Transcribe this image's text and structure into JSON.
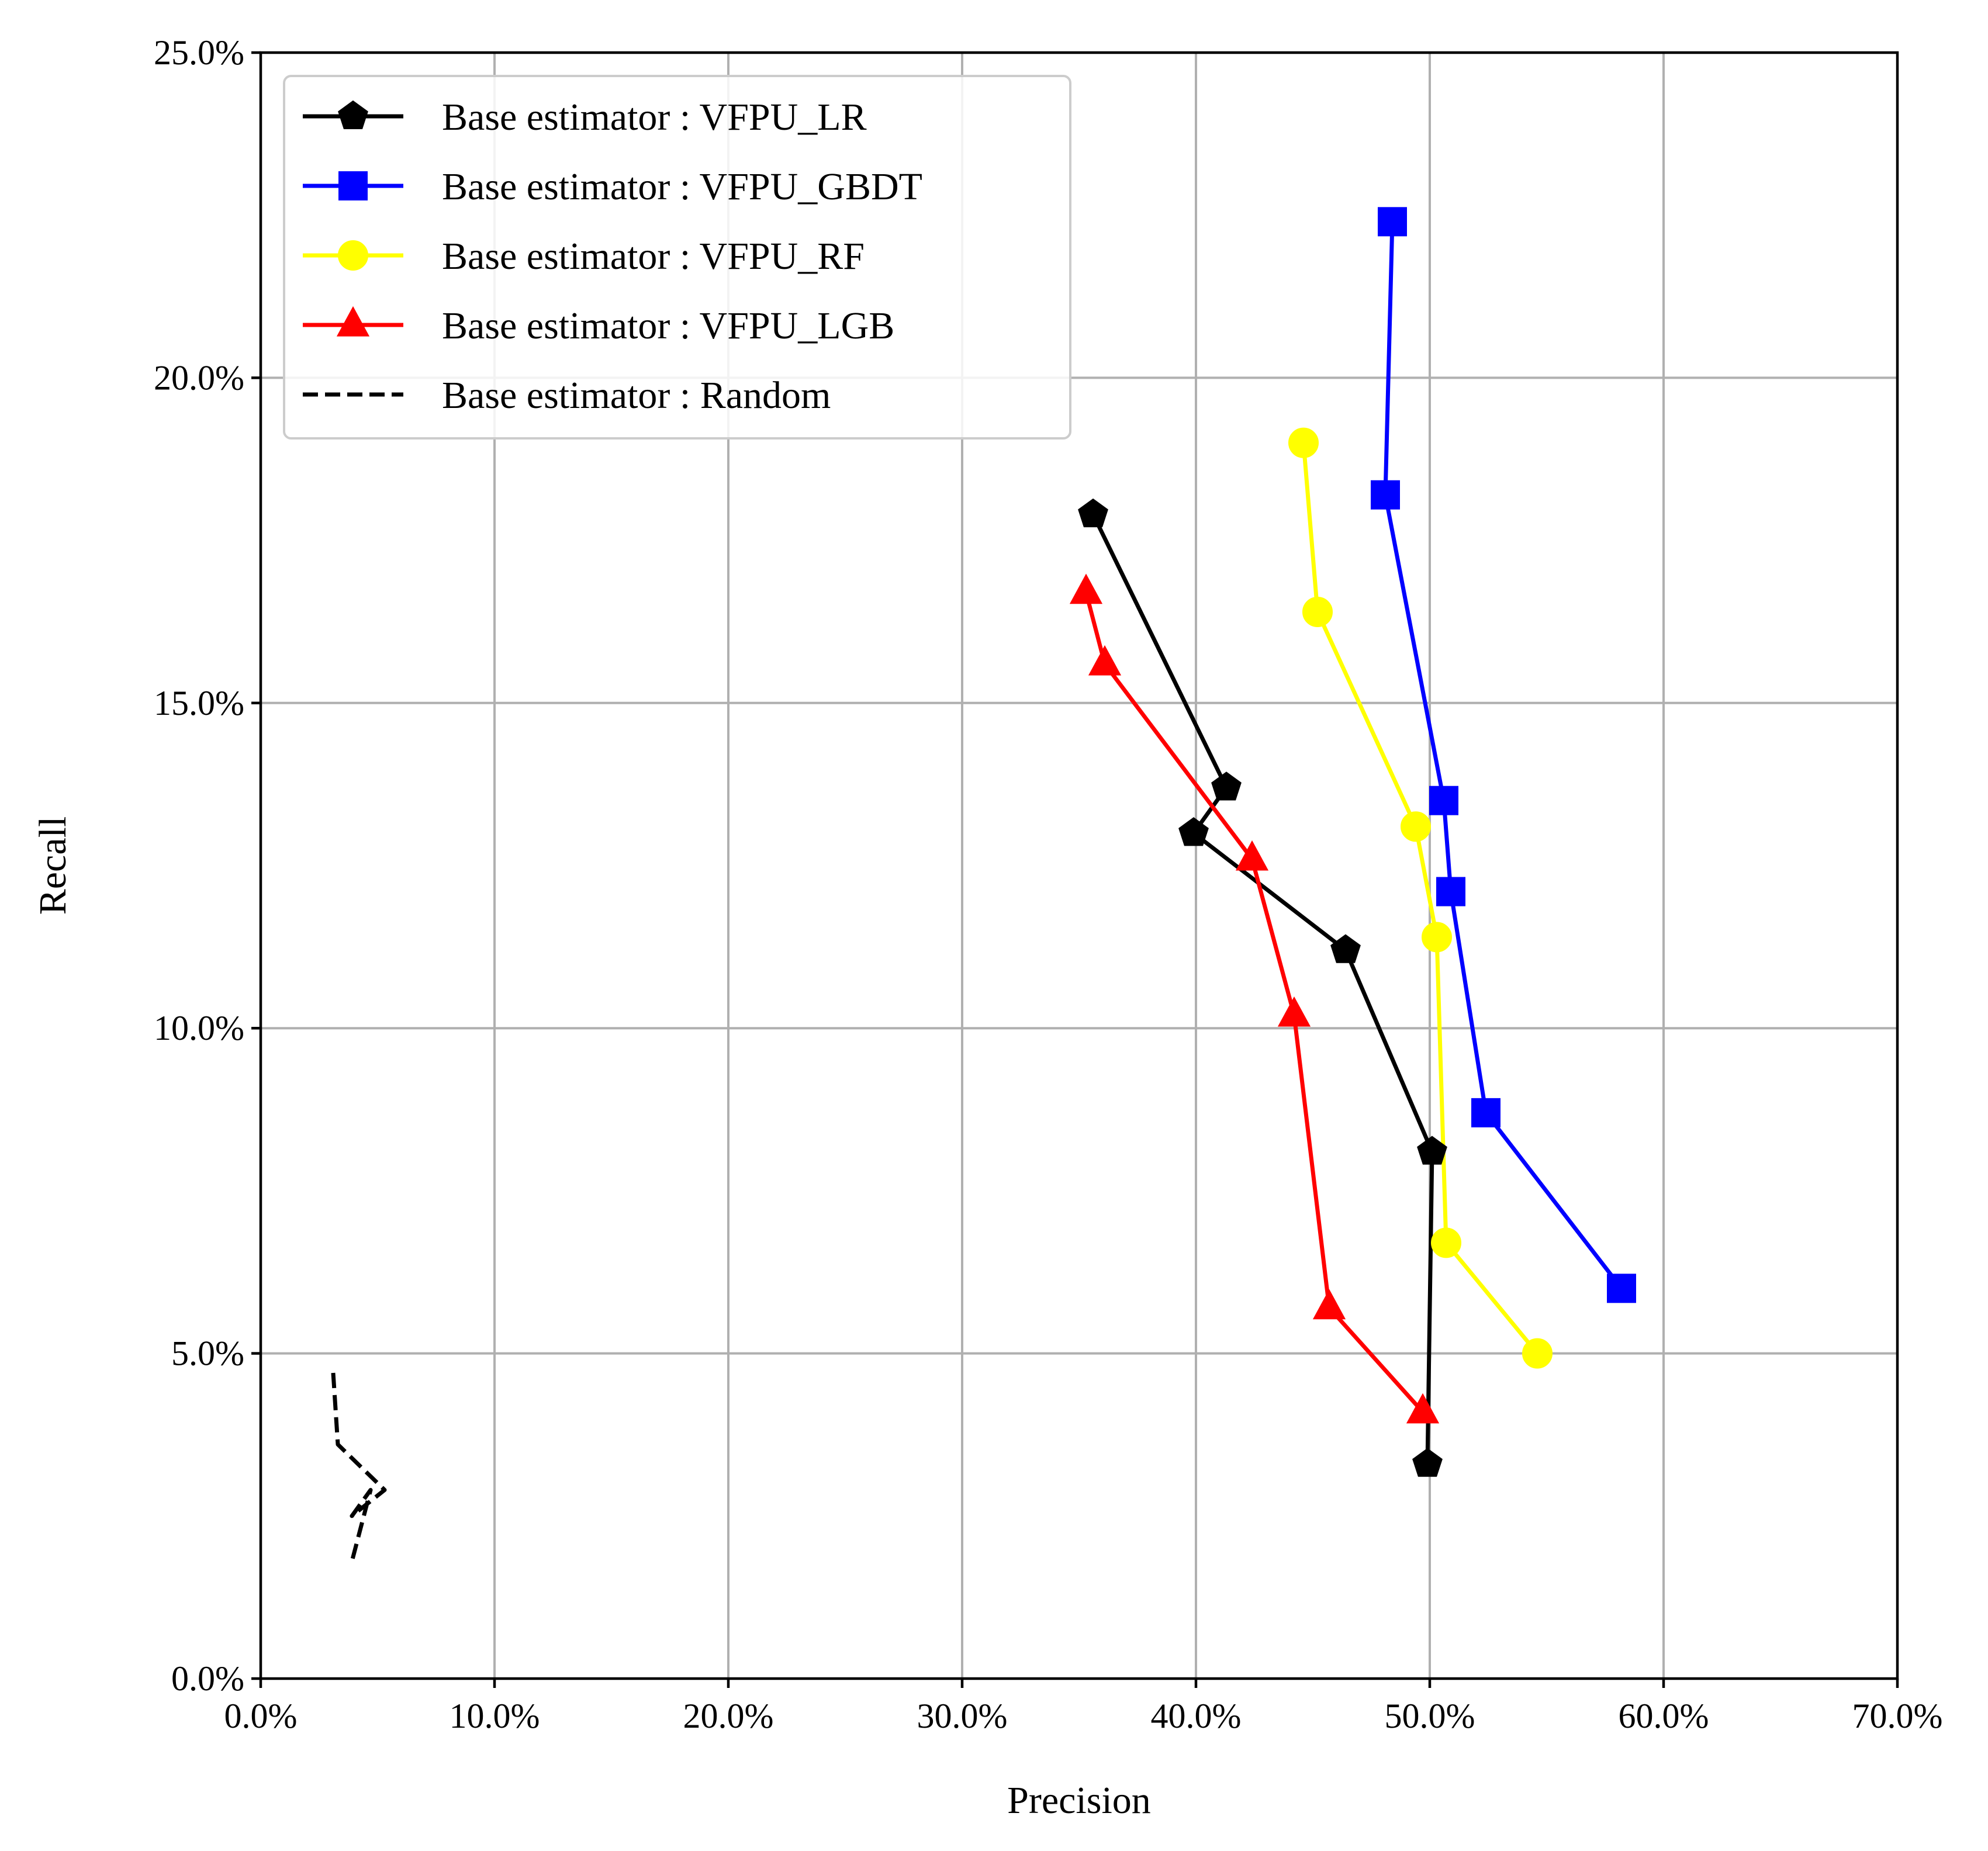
{
  "chart_data": {
    "type": "line",
    "xlabel": "Precision",
    "ylabel": "Recall",
    "xlim": [
      0,
      70
    ],
    "ylim": [
      0,
      25
    ],
    "x_ticks": [
      0,
      10,
      20,
      30,
      40,
      50,
      60,
      70
    ],
    "y_ticks": [
      0,
      5,
      10,
      15,
      20,
      25
    ],
    "x_tick_labels": [
      "0.0%",
      "10.0%",
      "20.0%",
      "30.0%",
      "40.0%",
      "50.0%",
      "60.0%",
      "70.0%"
    ],
    "y_tick_labels": [
      "0.0%",
      "5.0%",
      "10.0%",
      "15.0%",
      "20.0%",
      "25.0%"
    ],
    "grid": true,
    "legend_position": "top-left",
    "series": [
      {
        "name": "Base estimator : VFPU_LR",
        "color": "#000000",
        "marker": "pentagon",
        "dash": "solid",
        "points": [
          [
            35.6,
            17.9
          ],
          [
            41.3,
            13.7
          ],
          [
            39.9,
            13.0
          ],
          [
            46.4,
            11.2
          ],
          [
            50.1,
            8.1
          ],
          [
            49.9,
            3.3
          ]
        ]
      },
      {
        "name": "Base estimator : VFPU_GBDT",
        "color": "#0000ff",
        "marker": "square",
        "dash": "solid",
        "points": [
          [
            48.4,
            22.4
          ],
          [
            48.1,
            18.2
          ],
          [
            50.6,
            13.5
          ],
          [
            50.9,
            12.1
          ],
          [
            52.4,
            8.7
          ],
          [
            58.2,
            6.0
          ]
        ]
      },
      {
        "name": "Base estimator : VFPU_RF",
        "color": "#ffff00",
        "marker": "circle",
        "dash": "solid",
        "points": [
          [
            44.6,
            19.0
          ],
          [
            45.2,
            16.4
          ],
          [
            49.4,
            13.1
          ],
          [
            50.3,
            11.4
          ],
          [
            50.7,
            6.7
          ],
          [
            54.6,
            5.0
          ]
        ]
      },
      {
        "name": "Base estimator : VFPU_LGB",
        "color": "#ff0000",
        "marker": "triangle",
        "dash": "solid",
        "points": [
          [
            35.3,
            16.7
          ],
          [
            36.1,
            15.6
          ],
          [
            42.4,
            12.6
          ],
          [
            44.2,
            10.2
          ],
          [
            45.7,
            5.7
          ],
          [
            49.7,
            4.1
          ]
        ]
      },
      {
        "name": "Base estimator : Random",
        "color": "#000000",
        "marker": "none",
        "dash": "dashed",
        "points": [
          [
            3.1,
            4.7
          ],
          [
            3.3,
            3.6
          ],
          [
            5.3,
            2.9
          ],
          [
            3.9,
            2.5
          ],
          [
            4.7,
            2.9
          ],
          [
            3.9,
            1.8
          ]
        ]
      }
    ]
  }
}
